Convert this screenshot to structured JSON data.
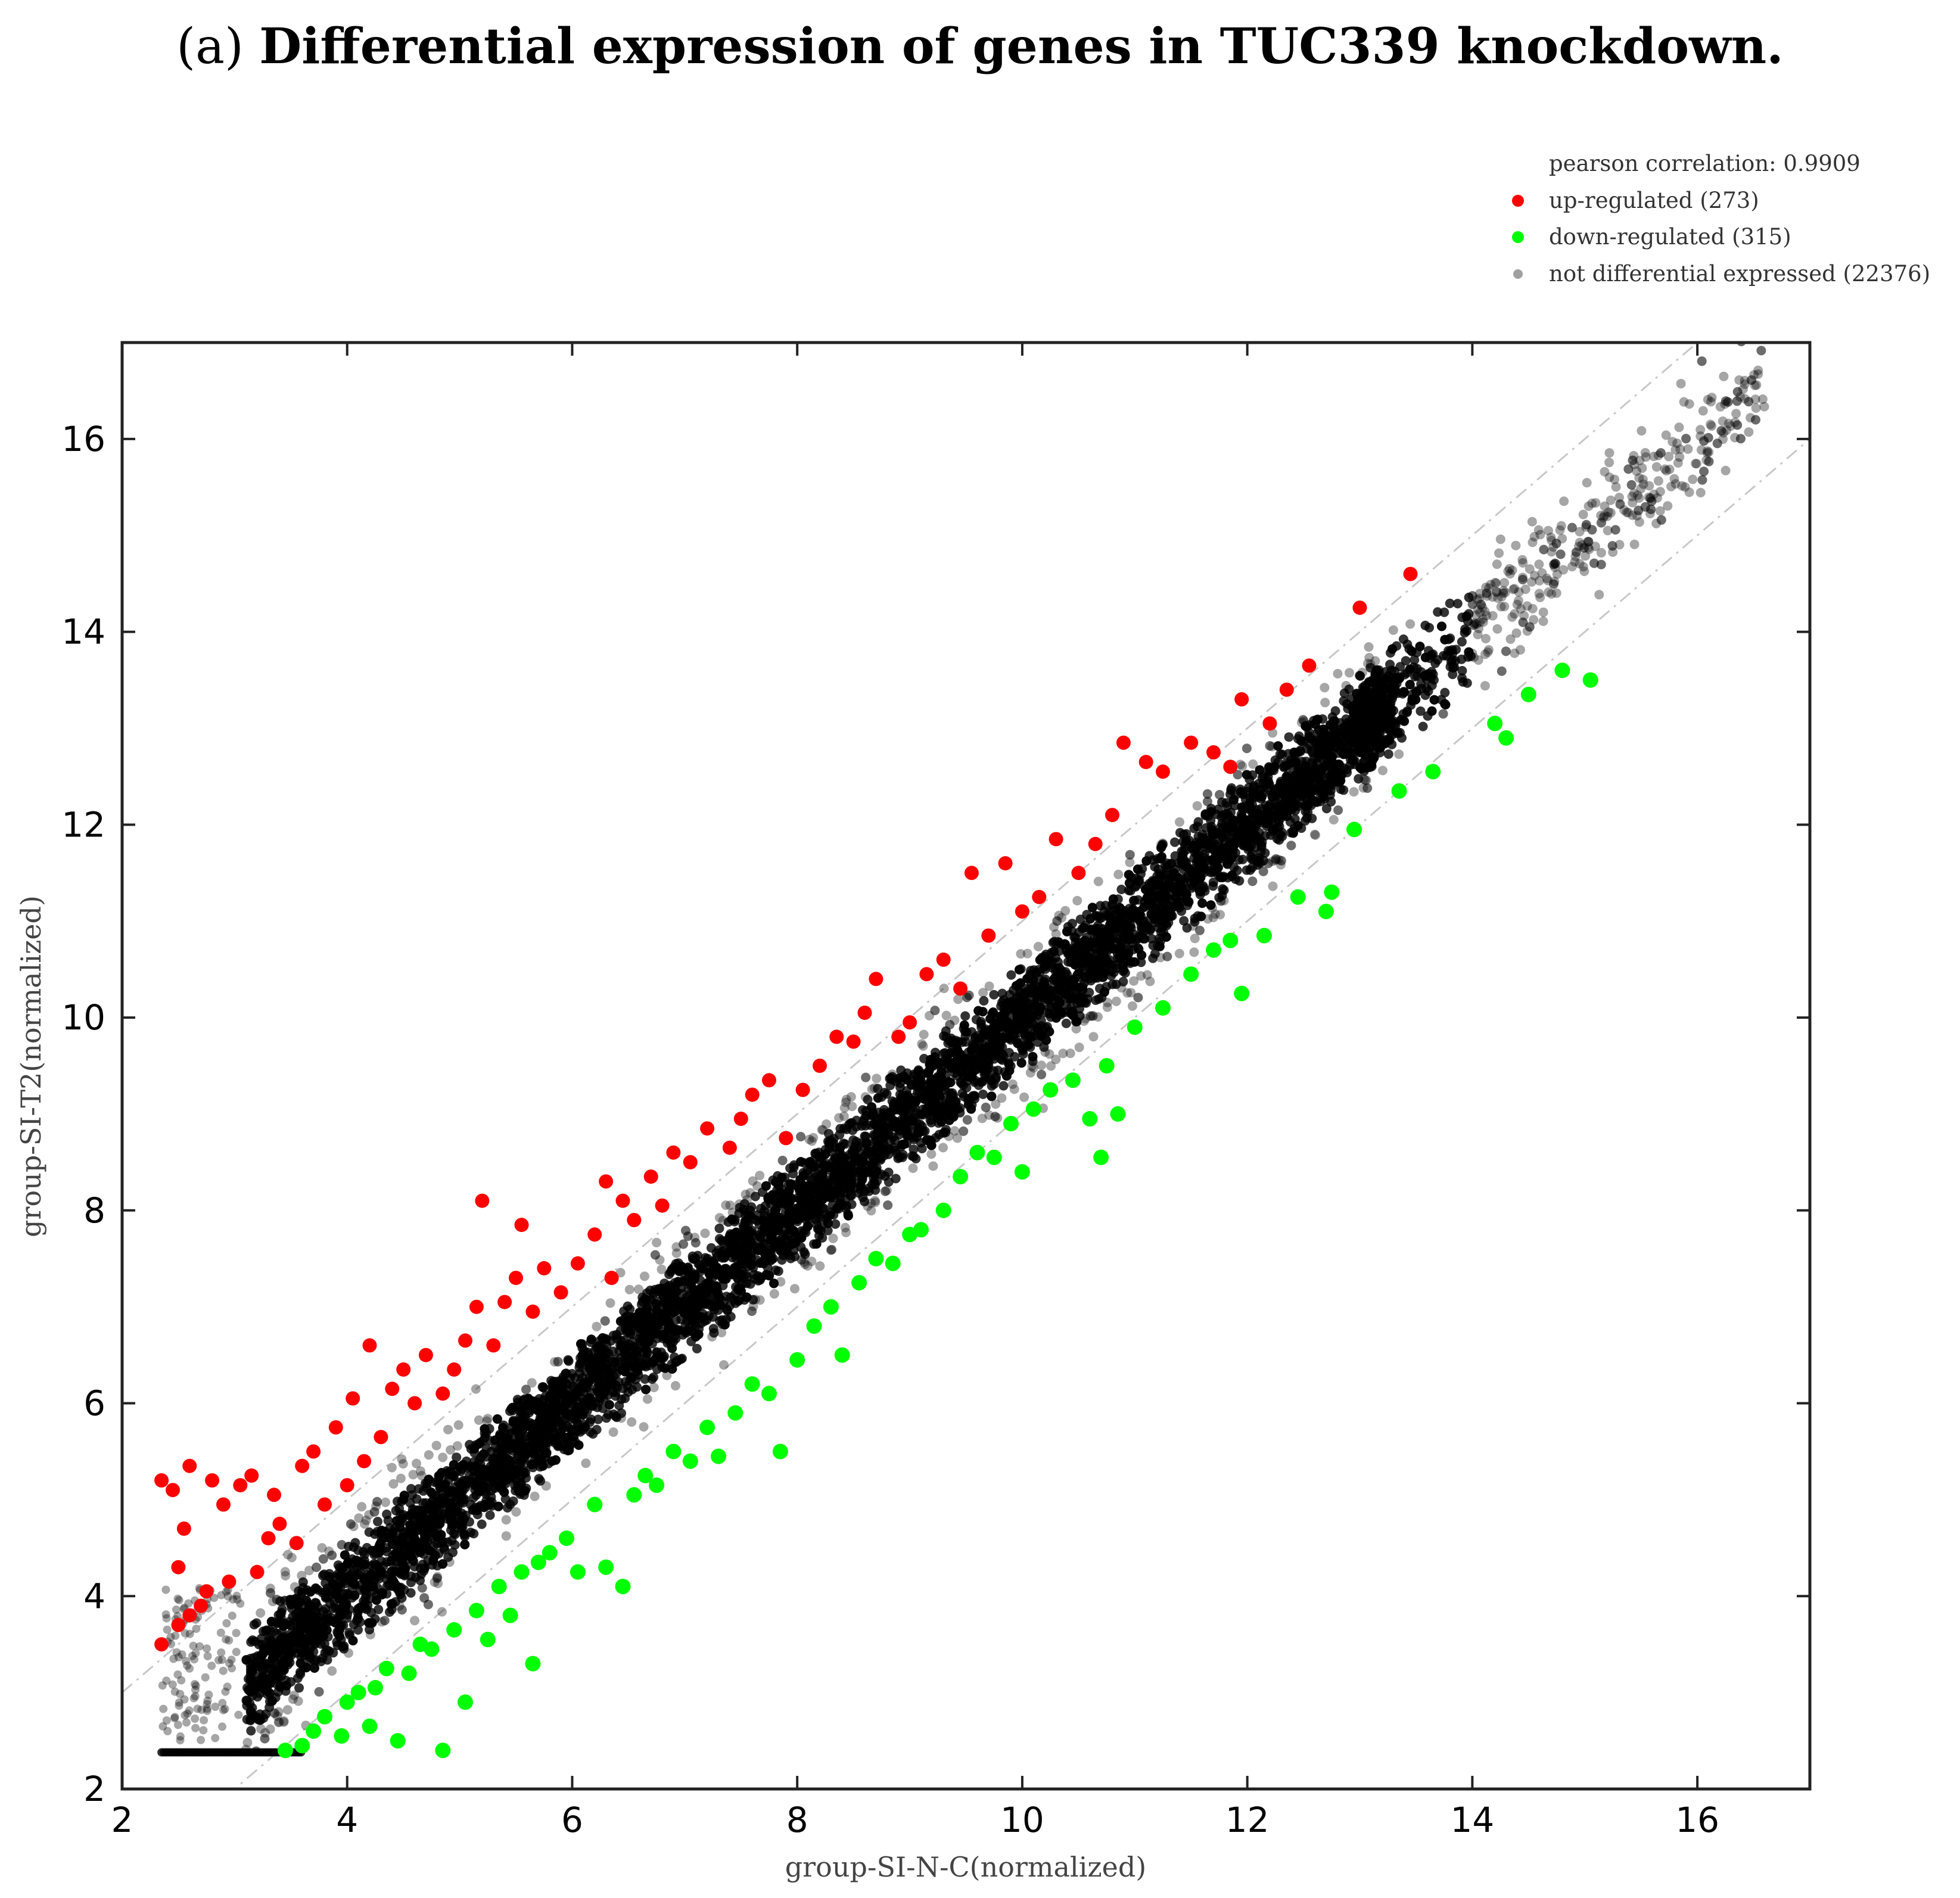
{
  "title": {
    "prefix": "(a)",
    "main": "Differential expression of genes in TUC339 knockdown."
  },
  "colors": {
    "up": "#ff0000",
    "down": "#00ff00",
    "not": "#000000",
    "diagonal": "#c8c8c8"
  },
  "chart_data": {
    "type": "scatter",
    "xlabel": "group-SI-N-C(normalized)",
    "ylabel": "group-SI-T2(normalized)",
    "xlim": [
      2,
      17
    ],
    "ylim": [
      2,
      17
    ],
    "xticks": [
      2,
      4,
      6,
      8,
      10,
      12,
      14,
      16
    ],
    "yticks": [
      2,
      4,
      6,
      8,
      10,
      12,
      14,
      16
    ],
    "grid": false,
    "legend_position": "top-right, above plot",
    "annotation": "pearson correlation: 0.9909",
    "reference_lines": [
      {
        "slope": 1,
        "intercept": 1
      },
      {
        "slope": 1,
        "intercept": -1
      }
    ],
    "series": [
      {
        "name": "up-regulated (273)",
        "color": "#ff0000",
        "points": [
          [
            2.35,
            3.5
          ],
          [
            2.35,
            5.2
          ],
          [
            2.45,
            5.1
          ],
          [
            2.5,
            4.3
          ],
          [
            2.55,
            4.7
          ],
          [
            2.6,
            5.35
          ],
          [
            2.5,
            3.7
          ],
          [
            2.6,
            3.8
          ],
          [
            2.7,
            3.9
          ],
          [
            2.75,
            4.05
          ],
          [
            2.8,
            5.2
          ],
          [
            2.9,
            4.95
          ],
          [
            2.95,
            4.15
          ],
          [
            3.05,
            5.15
          ],
          [
            3.15,
            5.25
          ],
          [
            3.2,
            4.25
          ],
          [
            3.3,
            4.6
          ],
          [
            3.35,
            5.05
          ],
          [
            3.4,
            4.75
          ],
          [
            3.55,
            4.55
          ],
          [
            3.6,
            5.35
          ],
          [
            3.7,
            5.5
          ],
          [
            3.8,
            4.95
          ],
          [
            3.9,
            5.75
          ],
          [
            4.0,
            5.15
          ],
          [
            4.05,
            6.05
          ],
          [
            4.15,
            5.4
          ],
          [
            4.2,
            6.6
          ],
          [
            4.3,
            5.65
          ],
          [
            4.4,
            6.15
          ],
          [
            4.5,
            6.35
          ],
          [
            4.6,
            6.0
          ],
          [
            4.7,
            6.5
          ],
          [
            4.85,
            6.1
          ],
          [
            4.95,
            6.35
          ],
          [
            5.05,
            6.65
          ],
          [
            5.15,
            7.0
          ],
          [
            5.2,
            8.1
          ],
          [
            5.3,
            6.6
          ],
          [
            5.4,
            7.05
          ],
          [
            5.5,
            7.3
          ],
          [
            5.55,
            7.85
          ],
          [
            5.65,
            6.95
          ],
          [
            5.75,
            7.4
          ],
          [
            5.9,
            7.15
          ],
          [
            6.05,
            7.45
          ],
          [
            6.2,
            7.75
          ],
          [
            6.3,
            8.3
          ],
          [
            6.35,
            7.3
          ],
          [
            6.45,
            8.1
          ],
          [
            6.55,
            7.9
          ],
          [
            6.7,
            8.35
          ],
          [
            6.8,
            8.05
          ],
          [
            6.9,
            8.6
          ],
          [
            7.05,
            8.5
          ],
          [
            7.2,
            8.85
          ],
          [
            7.4,
            8.65
          ],
          [
            7.5,
            8.95
          ],
          [
            7.6,
            9.2
          ],
          [
            7.75,
            9.35
          ],
          [
            7.9,
            8.75
          ],
          [
            8.05,
            9.25
          ],
          [
            8.2,
            9.5
          ],
          [
            8.35,
            9.8
          ],
          [
            8.5,
            9.75
          ],
          [
            8.6,
            10.05
          ],
          [
            8.7,
            10.4
          ],
          [
            8.9,
            9.8
          ],
          [
            9.0,
            9.95
          ],
          [
            9.15,
            10.45
          ],
          [
            9.3,
            10.6
          ],
          [
            9.45,
            10.3
          ],
          [
            9.55,
            11.5
          ],
          [
            9.7,
            10.85
          ],
          [
            9.85,
            11.6
          ],
          [
            10.0,
            11.1
          ],
          [
            10.15,
            11.25
          ],
          [
            10.3,
            11.85
          ],
          [
            10.5,
            11.5
          ],
          [
            10.65,
            11.8
          ],
          [
            10.8,
            12.1
          ],
          [
            10.9,
            12.85
          ],
          [
            11.1,
            12.65
          ],
          [
            11.25,
            12.55
          ],
          [
            11.5,
            12.85
          ],
          [
            11.7,
            12.75
          ],
          [
            11.85,
            12.6
          ],
          [
            11.95,
            13.3
          ],
          [
            12.2,
            13.05
          ],
          [
            12.35,
            13.4
          ],
          [
            12.55,
            13.65
          ],
          [
            13.0,
            14.25
          ],
          [
            13.45,
            14.6
          ]
        ]
      },
      {
        "name": "down-regulated (315)",
        "color": "#00ff00",
        "points": [
          [
            3.45,
            2.4
          ],
          [
            3.6,
            2.45
          ],
          [
            3.7,
            2.6
          ],
          [
            3.8,
            2.75
          ],
          [
            3.95,
            2.55
          ],
          [
            4.0,
            2.9
          ],
          [
            4.1,
            3.0
          ],
          [
            4.2,
            2.65
          ],
          [
            4.25,
            3.05
          ],
          [
            4.35,
            3.25
          ],
          [
            4.45,
            2.5
          ],
          [
            4.55,
            3.2
          ],
          [
            4.65,
            3.5
          ],
          [
            4.75,
            3.45
          ],
          [
            4.85,
            2.4
          ],
          [
            4.95,
            3.65
          ],
          [
            5.05,
            2.9
          ],
          [
            5.15,
            3.85
          ],
          [
            5.25,
            3.55
          ],
          [
            5.35,
            4.1
          ],
          [
            5.45,
            3.8
          ],
          [
            5.55,
            4.25
          ],
          [
            5.65,
            3.3
          ],
          [
            5.7,
            4.35
          ],
          [
            5.8,
            4.45
          ],
          [
            5.95,
            4.6
          ],
          [
            6.05,
            4.25
          ],
          [
            6.2,
            4.95
          ],
          [
            6.3,
            4.3
          ],
          [
            6.45,
            4.1
          ],
          [
            6.55,
            5.05
          ],
          [
            6.65,
            5.25
          ],
          [
            6.75,
            5.15
          ],
          [
            6.9,
            5.5
          ],
          [
            7.05,
            5.4
          ],
          [
            7.2,
            5.75
          ],
          [
            7.3,
            5.45
          ],
          [
            7.45,
            5.9
          ],
          [
            7.6,
            6.2
          ],
          [
            7.75,
            6.1
          ],
          [
            7.85,
            5.5
          ],
          [
            8.0,
            6.45
          ],
          [
            8.15,
            6.8
          ],
          [
            8.3,
            7.0
          ],
          [
            8.4,
            6.5
          ],
          [
            8.55,
            7.25
          ],
          [
            8.7,
            7.5
          ],
          [
            8.85,
            7.45
          ],
          [
            9.0,
            7.75
          ],
          [
            9.1,
            7.8
          ],
          [
            9.3,
            8.0
          ],
          [
            9.45,
            8.35
          ],
          [
            9.6,
            8.6
          ],
          [
            9.75,
            8.55
          ],
          [
            9.9,
            8.9
          ],
          [
            10.0,
            8.4
          ],
          [
            10.1,
            9.05
          ],
          [
            10.25,
            9.25
          ],
          [
            10.45,
            9.35
          ],
          [
            10.6,
            8.95
          ],
          [
            10.75,
            9.5
          ],
          [
            10.85,
            9.0
          ],
          [
            11.0,
            9.9
          ],
          [
            11.25,
            10.1
          ],
          [
            11.5,
            10.45
          ],
          [
            11.7,
            10.7
          ],
          [
            11.95,
            10.25
          ],
          [
            12.15,
            10.85
          ],
          [
            12.45,
            11.25
          ],
          [
            12.7,
            11.1
          ],
          [
            12.95,
            11.95
          ],
          [
            13.35,
            12.35
          ],
          [
            13.65,
            12.55
          ],
          [
            14.2,
            13.05
          ],
          [
            14.5,
            13.35
          ],
          [
            14.8,
            13.6
          ],
          [
            15.05,
            13.5
          ],
          [
            14.3,
            12.9
          ],
          [
            12.75,
            11.3
          ],
          [
            11.85,
            10.8
          ],
          [
            10.7,
            8.55
          ]
        ]
      },
      {
        "name": "not differential expressed (22376)",
        "color": "#000000"
      }
    ]
  }
}
